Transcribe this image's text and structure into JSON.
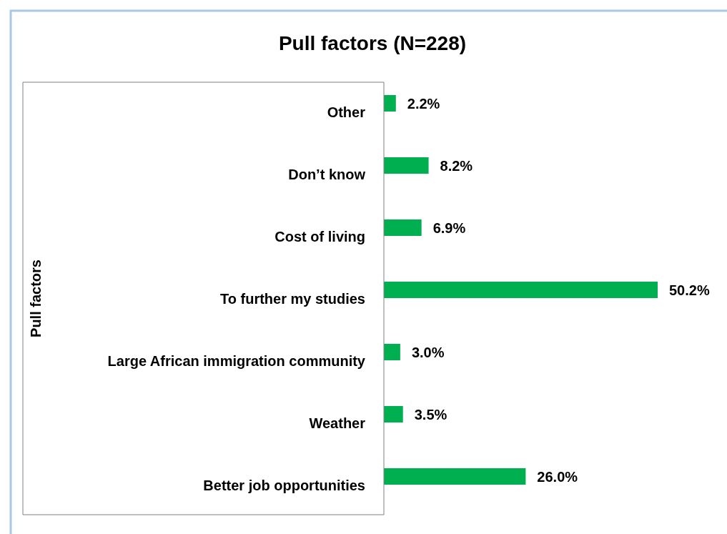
{
  "chart_data": {
    "type": "bar",
    "orientation": "horizontal",
    "title": "Pull factors  (N=228)",
    "ylabel": "Pull factors",
    "categories": [
      "Other",
      "Don’t know",
      "Cost of living",
      "To further my studies",
      "Large African immigration community",
      "Weather",
      "Better job opportunities"
    ],
    "values": [
      2.2,
      8.2,
      6.9,
      50.2,
      3.0,
      3.5,
      26.0
    ],
    "value_labels": [
      "2.2%",
      "8.2%",
      "6.9%",
      "50.2%",
      "3.0%",
      "3.5%",
      "26.0%"
    ],
    "color": "#00b050"
  }
}
